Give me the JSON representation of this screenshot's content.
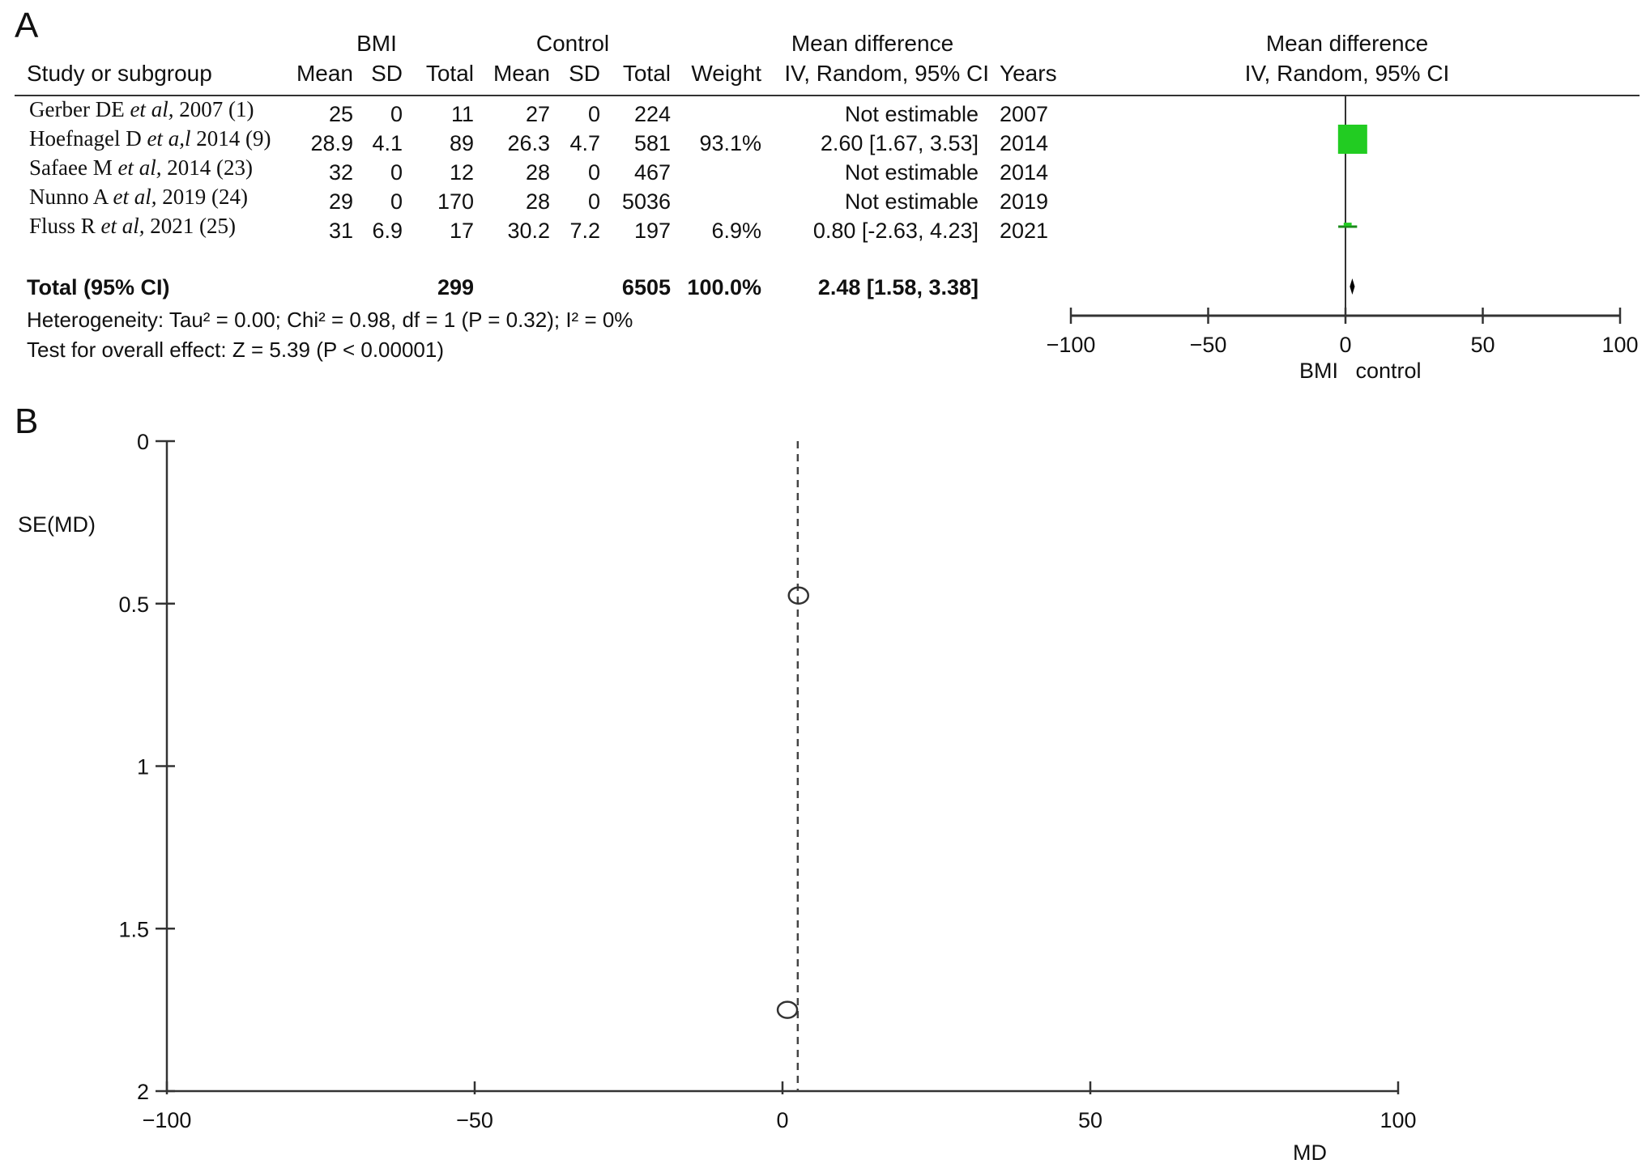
{
  "panel_a": {
    "label": "A",
    "headers": {
      "group_bmi": "BMI",
      "group_control": "Control",
      "group_md": "Mean difference",
      "study": "Study or subgroup",
      "mean": "Mean",
      "sd": "SD",
      "total": "Total",
      "weight": "Weight",
      "method": "IV, Random, 95% CI",
      "years": "Years",
      "plot_title": "Mean difference",
      "plot_method": "IV, Random, 95% CI"
    },
    "studies": [
      {
        "author": "Gerber DE ",
        "etal": "et al,",
        "rest": " 2007 (1)",
        "bmi_mean": "25",
        "bmi_sd": "0",
        "bmi_total": "11",
        "ctrl_mean": "27",
        "ctrl_sd": "0",
        "ctrl_total": "224",
        "weight": "",
        "ci": "Not estimable",
        "year": "2007"
      },
      {
        "author": "Hoefnagel D ",
        "etal": "et a,l",
        "rest": " 2014 (9)",
        "bmi_mean": "28.9",
        "bmi_sd": "4.1",
        "bmi_total": "89",
        "ctrl_mean": "26.3",
        "ctrl_sd": "4.7",
        "ctrl_total": "581",
        "weight": "93.1%",
        "ci": "2.60 [1.67, 3.53]",
        "year": "2014"
      },
      {
        "author": "Safaee M ",
        "etal": "et al,",
        "rest": " 2014 (23)",
        "bmi_mean": "32",
        "bmi_sd": "0",
        "bmi_total": "12",
        "ctrl_mean": "28",
        "ctrl_sd": "0",
        "ctrl_total": "467",
        "weight": "",
        "ci": "Not estimable",
        "year": "2014"
      },
      {
        "author": "Nunno A ",
        "etal": "et al,",
        "rest": " 2019 (24)",
        "bmi_mean": "29",
        "bmi_sd": "0",
        "bmi_total": "170",
        "ctrl_mean": "28",
        "ctrl_sd": "0",
        "ctrl_total": "5036",
        "weight": "",
        "ci": "Not estimable",
        "year": "2019"
      },
      {
        "author": "Fluss R ",
        "etal": "et al,",
        "rest": " 2021 (25)",
        "bmi_mean": "31",
        "bmi_sd": "6.9",
        "bmi_total": "17",
        "ctrl_mean": "30.2",
        "ctrl_sd": "7.2",
        "ctrl_total": "197",
        "weight": "6.9%",
        "ci": "0.80 [-2.63, 4.23]",
        "year": "2021"
      }
    ],
    "total_row": {
      "label": "Total (95% CI)",
      "bmi_total": "299",
      "ctrl_total": "6505",
      "weight": "100.0%",
      "ci": "2.48 [1.58, 3.38]"
    },
    "heterogeneity": "Heterogeneity: Tau² = 0.00; Chi² = 0.98, df = 1 (P = 0.32); I² = 0%",
    "overall_effect": "Test for overall effect: Z = 5.39 (P < 0.00001)",
    "favours_left": "BMI",
    "favours_right": "control",
    "colors": {
      "square": "#22cc22",
      "ci_line": "#1a8a1a",
      "diamond": "#000000"
    }
  },
  "panel_b": {
    "label": "B"
  },
  "chart_data": [
    {
      "type": "forest",
      "x_ticks": [
        "−100",
        "−50",
        "0",
        "50",
        "100"
      ],
      "xlim": [
        -100,
        100
      ],
      "studies": [
        {
          "md": 2.6,
          "lower": 1.67,
          "upper": 3.53,
          "weight": 93.1
        },
        {
          "md": 0.8,
          "lower": -2.63,
          "upper": 4.23,
          "weight": 6.9
        }
      ],
      "pooled": {
        "md": 2.48,
        "lower": 1.58,
        "upper": 3.38
      }
    },
    {
      "type": "scatter",
      "xlabel": "MD",
      "ylabel": "SE(MD)",
      "xlim": [
        -100,
        100
      ],
      "ylim": [
        0,
        2
      ],
      "y_inverted": true,
      "x_ticks": [
        "−100",
        "−50",
        "0",
        "50",
        "100"
      ],
      "y_ticks": [
        "0",
        "0.5",
        "1",
        "1.5",
        "2"
      ],
      "points": [
        {
          "x": 2.6,
          "y": 0.475
        },
        {
          "x": 0.8,
          "y": 1.75
        }
      ],
      "reference_line_x": 2.48
    }
  ]
}
